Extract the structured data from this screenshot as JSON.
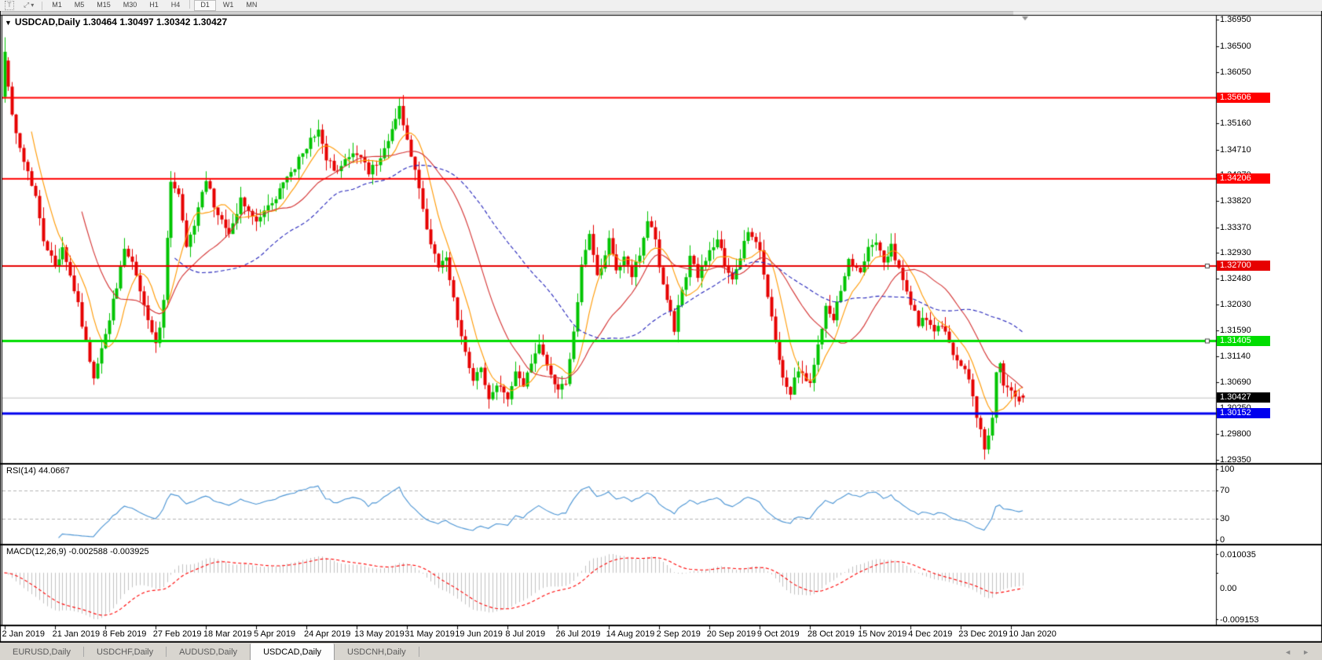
{
  "toolbar": {
    "text_tool_label": "T",
    "arrows_tool_glyph": "⤢",
    "dropdown_caret": "▾",
    "timeframes": [
      "M1",
      "M5",
      "M15",
      "M30",
      "H1",
      "H4",
      "D1",
      "W1",
      "MN"
    ],
    "active_timeframe": "D1"
  },
  "chart_header": {
    "title": "USDCAD,Daily  1.30464 1.30497 1.30342 1.30427",
    "collapse_glyph": "▼"
  },
  "price_axis": {
    "ticks": [
      "1.36950",
      "1.36500",
      "1.36050",
      "1.35600",
      "1.35160",
      "1.34710",
      "1.34270",
      "1.33820",
      "1.33370",
      "1.32930",
      "1.32480",
      "1.32030",
      "1.31590",
      "1.31140",
      "1.30690",
      "1.30250",
      "1.29800",
      "1.29350"
    ]
  },
  "levels": [
    {
      "value": "1.35606",
      "price": 1.35606,
      "color": "#ff0000",
      "width": 2,
      "handle": false
    },
    {
      "value": "1.34206",
      "price": 1.34206,
      "color": "#ff0000",
      "width": 2,
      "handle": false
    },
    {
      "value": "1.32700",
      "price": 1.327,
      "color": "#e60000",
      "width": 2,
      "handle": true
    },
    {
      "value": "1.31405",
      "price": 1.31405,
      "color": "#00dd00",
      "width": 3,
      "handle": true
    },
    {
      "value": "1.30152",
      "price": 1.30152,
      "color": "#0000ee",
      "width": 3,
      "handle": false
    }
  ],
  "current_price": {
    "value": "1.30427",
    "price": 1.30427
  },
  "rsi_panel": {
    "label": "RSI(14) 44.0667",
    "value": 44.0667,
    "ticks": [
      {
        "t": "100",
        "v": 100
      },
      {
        "t": "70",
        "v": 70
      },
      {
        "t": "30",
        "v": 30
      },
      {
        "t": "0",
        "v": 0
      }
    ],
    "dashed_levels": [
      70,
      30
    ]
  },
  "macd_panel": {
    "label": "MACD(12,26,9) -0.002588 -0.003925",
    "value": -0.002588,
    "signal": -0.003925,
    "ticks": [
      "0.010035",
      "0.00",
      "-0.009153"
    ]
  },
  "date_axis": [
    "2 Jan 2019",
    "21 Jan 2019",
    "8 Feb 2019",
    "27 Feb 2019",
    "18 Mar 2019",
    "5 Apr 2019",
    "24 Apr 2019",
    "13 May 2019",
    "31 May 2019",
    "19 Jun 2019",
    "8 Jul 2019",
    "26 Jul 2019",
    "14 Aug 2019",
    "2 Sep 2019",
    "20 Sep 2019",
    "9 Oct 2019",
    "28 Oct 2019",
    "15 Nov 2019",
    "4 Dec 2019",
    "23 Dec 2019",
    "10 Jan 2020"
  ],
  "tabs": {
    "items": [
      "EURUSD,Daily",
      "USDCHF,Daily",
      "AUDUSD,Daily",
      "USDCAD,Daily",
      "USDCNH,Daily"
    ],
    "active": "USDCAD,Daily",
    "left_arrow": "◄",
    "right_arrow": "►"
  },
  "chart_data": {
    "type": "candlestick",
    "symbol": "USDCAD",
    "timeframe": "Daily",
    "ohlc_display": {
      "open": "1.30464",
      "high": "1.30497",
      "low": "1.30342",
      "close": "1.30427"
    },
    "candles_count": 264,
    "first_candle": {
      "o": 1.3562,
      "h": 1.3665,
      "l": 1.3552,
      "c": 1.364
    },
    "last_candle": {
      "o": 1.30464,
      "h": 1.30497,
      "l": 1.30342,
      "c": 1.30427
    },
    "price_path": [
      [
        0,
        1.362
      ],
      [
        1,
        1.3575
      ],
      [
        3,
        1.3495
      ],
      [
        5,
        1.3452
      ],
      [
        8,
        1.3395
      ],
      [
        10,
        1.331
      ],
      [
        13,
        1.3268
      ],
      [
        15,
        1.33
      ],
      [
        18,
        1.3232
      ],
      [
        21,
        1.314
      ],
      [
        23,
        1.3082
      ],
      [
        26,
        1.3155
      ],
      [
        29,
        1.3235
      ],
      [
        31,
        1.3305
      ],
      [
        34,
        1.3255
      ],
      [
        37,
        1.3178
      ],
      [
        39,
        1.3132
      ],
      [
        41,
        1.3205
      ],
      [
        43,
        1.342
      ],
      [
        45,
        1.3398
      ],
      [
        47,
        1.33
      ],
      [
        50,
        1.3365
      ],
      [
        52,
        1.342
      ],
      [
        55,
        1.3352
      ],
      [
        58,
        1.333
      ],
      [
        61,
        1.3382
      ],
      [
        65,
        1.3342
      ],
      [
        68,
        1.3372
      ],
      [
        71,
        1.34
      ],
      [
        74,
        1.3432
      ],
      [
        78,
        1.3478
      ],
      [
        81,
        1.3508
      ],
      [
        83,
        1.3452
      ],
      [
        86,
        1.3432
      ],
      [
        89,
        1.3458
      ],
      [
        91,
        1.3468
      ],
      [
        94,
        1.3432
      ],
      [
        97,
        1.346
      ],
      [
        100,
        1.35
      ],
      [
        102,
        1.3548
      ],
      [
        104,
        1.3482
      ],
      [
        106,
        1.3442
      ],
      [
        108,
        1.3372
      ],
      [
        110,
        1.3305
      ],
      [
        112,
        1.3272
      ],
      [
        114,
        1.3282
      ],
      [
        117,
        1.3182
      ],
      [
        119,
        1.3122
      ],
      [
        121,
        1.3072
      ],
      [
        123,
        1.3092
      ],
      [
        125,
        1.3042
      ],
      [
        127,
        1.3062
      ],
      [
        130,
        1.3042
      ],
      [
        132,
        1.3082
      ],
      [
        134,
        1.3062
      ],
      [
        136,
        1.3102
      ],
      [
        138,
        1.3132
      ],
      [
        140,
        1.3092
      ],
      [
        143,
        1.3052
      ],
      [
        145,
        1.3072
      ],
      [
        147,
        1.3152
      ],
      [
        149,
        1.3272
      ],
      [
        151,
        1.3322
      ],
      [
        153,
        1.3252
      ],
      [
        156,
        1.3312
      ],
      [
        158,
        1.3262
      ],
      [
        160,
        1.3292
      ],
      [
        162,
        1.3252
      ],
      [
        164,
        1.3292
      ],
      [
        166,
        1.3352
      ],
      [
        168,
        1.3312
      ],
      [
        169,
        1.3272
      ],
      [
        171,
        1.3212
      ],
      [
        173,
        1.3162
      ],
      [
        175,
        1.3232
      ],
      [
        177,
        1.3282
      ],
      [
        179,
        1.3252
      ],
      [
        182,
        1.3292
      ],
      [
        184,
        1.3322
      ],
      [
        186,
        1.3272
      ],
      [
        188,
        1.3242
      ],
      [
        190,
        1.3282
      ],
      [
        192,
        1.3332
      ],
      [
        195,
        1.3292
      ],
      [
        197,
        1.3222
      ],
      [
        199,
        1.3142
      ],
      [
        201,
        1.3082
      ],
      [
        203,
        1.3052
      ],
      [
        205,
        1.3092
      ],
      [
        208,
        1.3062
      ],
      [
        210,
        1.3132
      ],
      [
        212,
        1.3202
      ],
      [
        214,
        1.3172
      ],
      [
        216,
        1.3232
      ],
      [
        218,
        1.3282
      ],
      [
        221,
        1.3262
      ],
      [
        223,
        1.3302
      ],
      [
        225,
        1.3312
      ],
      [
        227,
        1.3282
      ],
      [
        229,
        1.3302
      ],
      [
        232,
        1.3252
      ],
      [
        234,
        1.3202
      ],
      [
        236,
        1.3172
      ],
      [
        238,
        1.3182
      ],
      [
        240,
        1.3162
      ],
      [
        242,
        1.3172
      ],
      [
        244,
        1.3132
      ],
      [
        247,
        1.3102
      ],
      [
        249,
        1.3072
      ],
      [
        251,
        1.3012
      ],
      [
        253,
        1.2958
      ],
      [
        254,
        1.2972
      ],
      [
        255,
        1.3012
      ],
      [
        256,
        1.3082
      ],
      [
        257,
        1.3102
      ],
      [
        258,
        1.3062
      ],
      [
        260,
        1.3052
      ],
      [
        261,
        1.3048
      ],
      [
        262,
        1.3038
      ],
      [
        263,
        1.30427
      ]
    ],
    "overlays": [
      {
        "name": "ma-fast",
        "period": 8,
        "color": "#ff9900",
        "dash": []
      },
      {
        "name": "ma-mid",
        "period": 21,
        "color": "#d43030",
        "dash": []
      },
      {
        "name": "ma-slow",
        "period": 45,
        "color": "#2323bb",
        "dash": [
          5,
          3
        ]
      }
    ],
    "indicators": [
      {
        "name": "RSI",
        "params": "14",
        "value": 44.0667
      },
      {
        "name": "MACD",
        "params": "12,26,9",
        "value": -0.002588,
        "signal": -0.003925
      }
    ],
    "horizontal_levels": [
      1.35606,
      1.34206,
      1.327,
      1.31405,
      1.30152
    ],
    "colors": {
      "up": "#00c400",
      "down": "#e60000",
      "rsi": "#4a94d4",
      "macd_hist": "#c2c2c2",
      "macd_signal": "#ff0000",
      "current_line": "#c0c0c0"
    }
  }
}
